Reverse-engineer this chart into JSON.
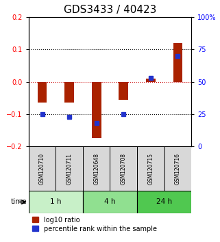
{
  "title": "GDS3433 / 40423",
  "samples": [
    "GSM120710",
    "GSM120711",
    "GSM120648",
    "GSM120708",
    "GSM120715",
    "GSM120716"
  ],
  "log10_ratio": [
    -0.065,
    -0.065,
    -0.175,
    -0.055,
    0.01,
    0.12
  ],
  "percentile_rank": [
    25,
    23,
    18,
    25,
    53,
    70
  ],
  "time_groups": [
    {
      "label": "1 h",
      "cols": [
        0,
        1
      ],
      "color": "#c8f0c8"
    },
    {
      "label": "4 h",
      "cols": [
        2,
        3
      ],
      "color": "#90e090"
    },
    {
      "label": "24 h",
      "cols": [
        4,
        5
      ],
      "color": "#50c850"
    }
  ],
  "ylim_left": [
    -0.2,
    0.2
  ],
  "ylim_right": [
    0,
    100
  ],
  "yticks_left": [
    -0.2,
    -0.1,
    0.0,
    0.1,
    0.2
  ],
  "yticks_right": [
    0,
    25,
    50,
    75,
    100
  ],
  "ytick_labels_right": [
    "0",
    "25",
    "50",
    "75",
    "100%"
  ],
  "bar_color": "#aa2200",
  "dot_color": "#2233cc",
  "zero_line_color": "#cc0000",
  "grid_color": "#000000",
  "bg_color": "#ffffff",
  "plot_bg": "#ffffff",
  "title_fontsize": 11,
  "tick_fontsize": 7,
  "label_fontsize": 7.5,
  "legend_fontsize": 7
}
